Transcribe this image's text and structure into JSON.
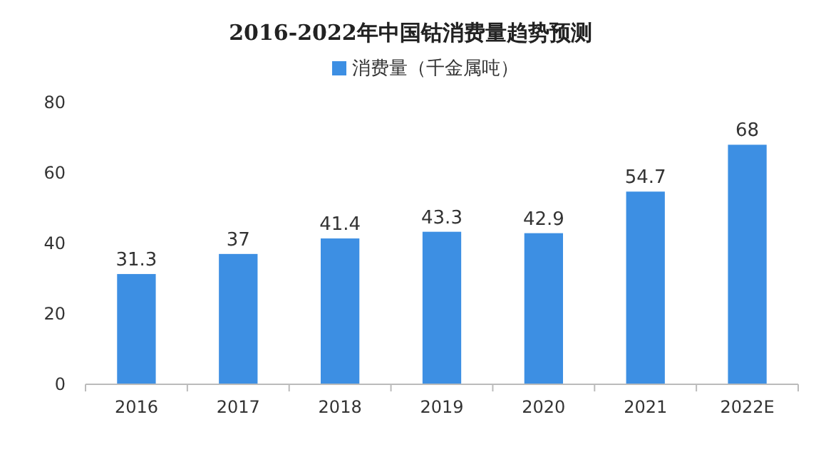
{
  "chart_data": {
    "type": "bar",
    "title": "2016-2022年中国钴消费量趋势预测",
    "categories": [
      "2016",
      "2017",
      "2018",
      "2019",
      "2020",
      "2021",
      "2022E"
    ],
    "series": [
      {
        "name": "消费量（千金属吨）",
        "color": "#3d8fe3",
        "values": [
          31.3,
          37,
          41.4,
          43.3,
          42.9,
          54.7,
          68
        ]
      }
    ],
    "ylim": [
      0,
      80
    ],
    "yticks": [
      0,
      20,
      40,
      60,
      80
    ],
    "data_labels": true,
    "legend": "top"
  }
}
